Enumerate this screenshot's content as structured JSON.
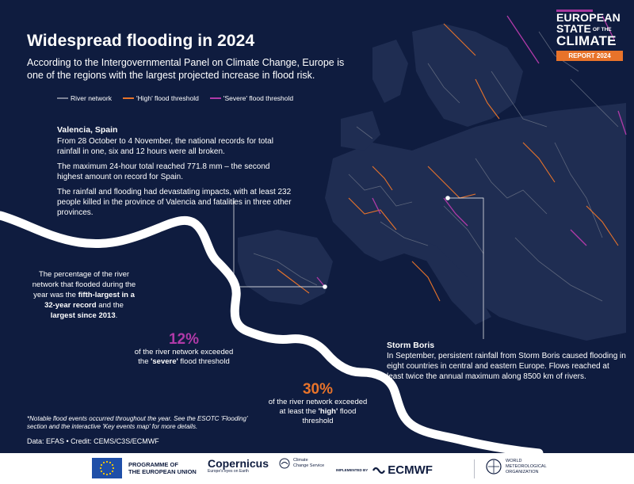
{
  "header": {
    "title": "Widespread flooding in 2024",
    "subtitle": "According to the Intergovernmental Panel on Climate Change, Europe is one of the regions with the largest projected increase in flood risk."
  },
  "legend": {
    "items": [
      {
        "label": "River network",
        "color": "#7c8396"
      },
      {
        "label": "'High' flood threshold",
        "color": "#e8732a"
      },
      {
        "label": "'Severe' flood threshold",
        "color": "#b03aa8"
      }
    ]
  },
  "badge": {
    "line1": "EUROPEAN",
    "line2": "STATE",
    "line2_small": "OF THE",
    "line3": "CLIMATE",
    "report": "REPORT 2024"
  },
  "valencia": {
    "heading": "Valencia, Spain",
    "p1": "From 28 October to 4 November, the national records for total rainfall in one, six and 12 hours were all broken.",
    "p2": "The maximum 24-hour total reached 771.8 mm – the second highest amount on record for Spain.",
    "p3": "The rainfall and flooding had devastating impacts, with at least 232 people killed in the province of Valencia and fatalities in three other provinces."
  },
  "percentage": {
    "t1": "The percentage of the river network that flooded during the year was the ",
    "b1": "fifth-largest in a 32-year record",
    "t2": " and the ",
    "b2": "largest since 2013",
    "t3": "."
  },
  "stat12": {
    "value": "12%",
    "line": "of the river network exceeded the ",
    "bold": "'severe'",
    "tail": " flood threshold",
    "color": "#b03aa8"
  },
  "stat30": {
    "value": "30%",
    "line": "of the river network exceeded at least the ",
    "bold": "'high'",
    "tail": " flood threshold",
    "color": "#e8732a"
  },
  "boris": {
    "heading": "Storm Boris",
    "text": "In September, persistent rainfall from Storm Boris caused flooding in eight countries in central and eastern Europe. Flows reached at least twice the annual maximum along 8500 km of rivers."
  },
  "note": "*Notable flood events occurred throughout the year. See the ESOTC 'Flooding' section and the interactive 'Key events map' for more details.",
  "credit": "Data: EFAS • Credit: CEMS/C3S/ECMWF",
  "footer": {
    "eu_line1": "PROGRAMME OF",
    "eu_line2": "THE EUROPEAN UNION",
    "copernicus": "Copernicus",
    "copernicus_sub": "Europe's eyes on Earth",
    "c3s_line1": "Climate",
    "c3s_line2": "Change Service",
    "implemented": "IMPLEMENTED BY",
    "ecmwf": "ECMWF",
    "wmo_line1": "WORLD",
    "wmo_line2": "METEOROLOGICAL",
    "wmo_line3": "ORGANIZATION"
  },
  "icons": [
    "eu-flag-icon",
    "copernicus-icon",
    "c3s-icon",
    "ecmwf-icon",
    "wmo-icon"
  ]
}
